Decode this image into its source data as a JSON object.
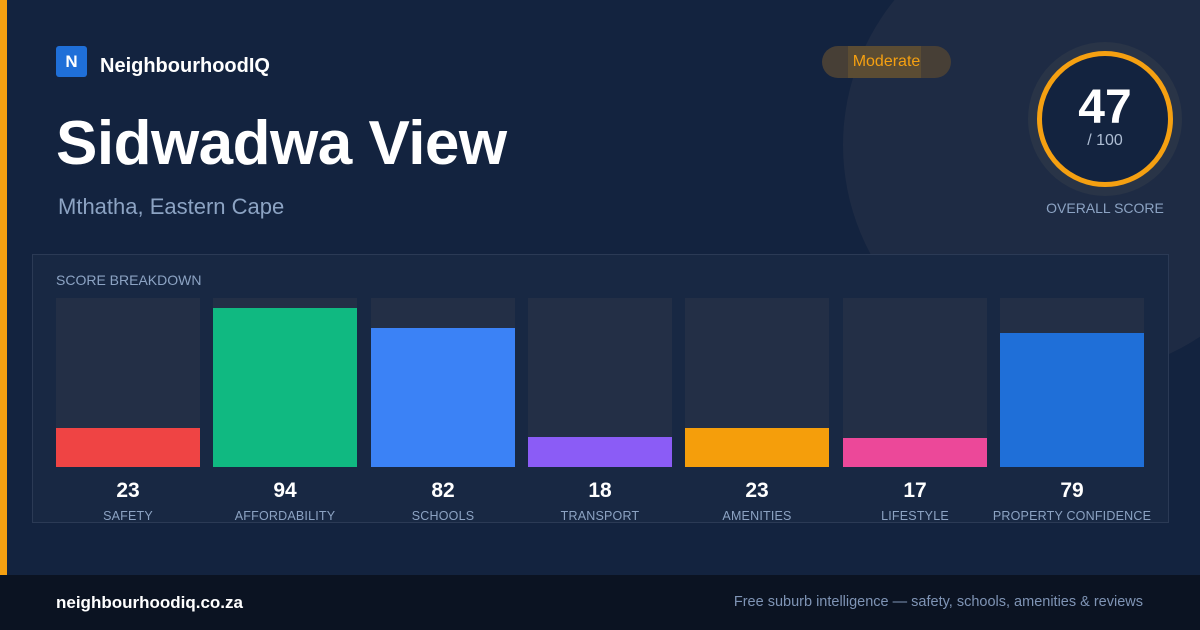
{
  "brand": {
    "logo_letter": "N",
    "name": "NeighbourhoodIQ",
    "accent_color": "#f5a011",
    "logo_color": "#1f6fd8"
  },
  "header": {
    "title": "Sidwadwa View",
    "location": "Mthatha, Eastern Cape",
    "rating_badge": "Moderate"
  },
  "overall": {
    "score": "47",
    "out_of": "/ 100",
    "label": "OVERALL SCORE"
  },
  "breakdown": {
    "label": "SCORE BREAKDOWN",
    "max": 100,
    "items": [
      {
        "name": "SAFETY",
        "value": 23,
        "color": "#ef4444"
      },
      {
        "name": "AFFORDABILITY",
        "value": 94,
        "color": "#10b981"
      },
      {
        "name": "SCHOOLS",
        "value": 82,
        "color": "#3b82f6"
      },
      {
        "name": "TRANSPORT",
        "value": 18,
        "color": "#8b5cf6"
      },
      {
        "name": "AMENITIES",
        "value": 23,
        "color": "#f59e0b"
      },
      {
        "name": "LIFESTYLE",
        "value": 17,
        "color": "#ec4899"
      },
      {
        "name": "PROPERTY CONFIDENCE",
        "value": 79,
        "color": "#1f6fd8"
      }
    ]
  },
  "footer": {
    "url": "neighbourhoodiq.co.za",
    "tagline": "Free suburb intelligence — safety, schools, amenities & reviews"
  }
}
